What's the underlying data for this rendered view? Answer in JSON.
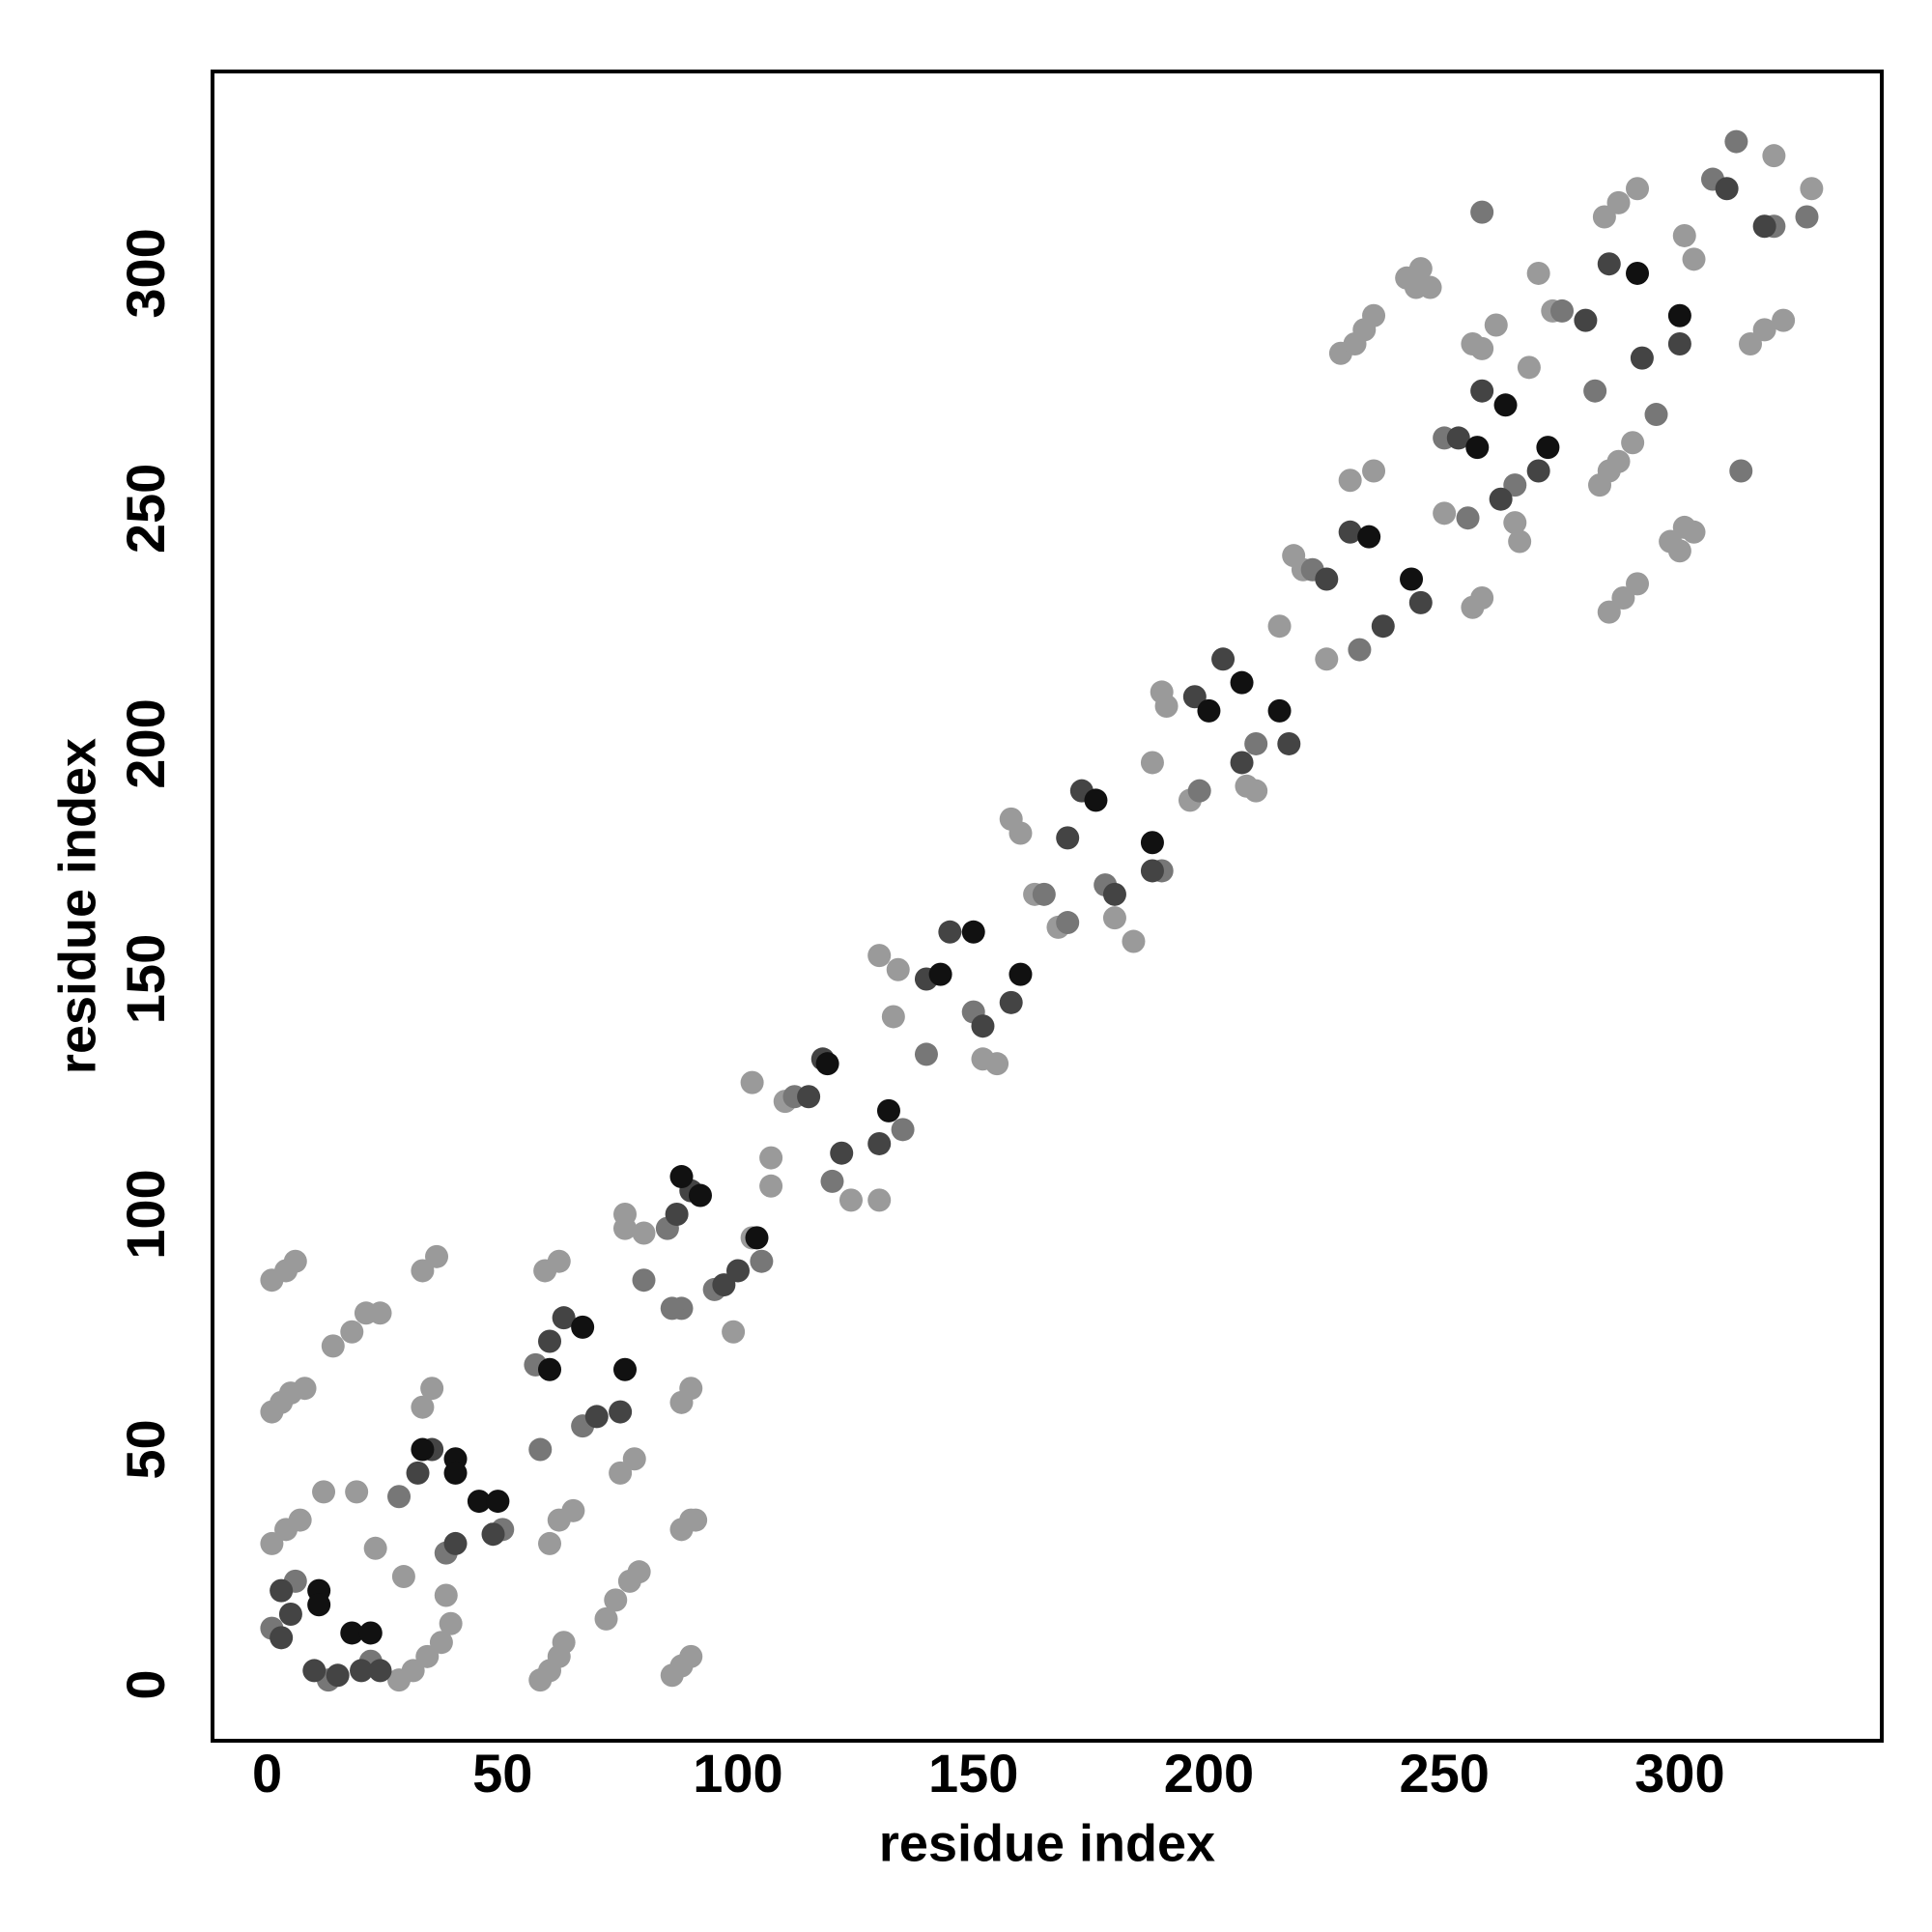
{
  "chart_data": {
    "type": "scatter",
    "xlabel": "residue index",
    "ylabel": "residue index",
    "xlim": [
      -11.6,
      342.9
    ],
    "ylim": [
      -11.9,
      342.9
    ],
    "xticks": [
      0,
      50,
      100,
      150,
      200,
      250,
      300
    ],
    "yticks": [
      0,
      50,
      100,
      150,
      200,
      250,
      300
    ],
    "series": [
      {
        "color": "#9a9a9a",
        "x": [
          1,
          3,
          5,
          8,
          1,
          4,
          6,
          14,
          18,
          21,
          24,
          1,
          4,
          7,
          12,
          19,
          23,
          29,
          28,
          31,
          34,
          37,
          33,
          35,
          33,
          36,
          38,
          39,
          58,
          60,
          62,
          63,
          60,
          62,
          65,
          59,
          62,
          72,
          74,
          77,
          79,
          86,
          88,
          90,
          88,
          90,
          88,
          90,
          91,
          76,
          76,
          80,
          78,
          75,
          99,
          103,
          110,
          103,
          107,
          107,
          124,
          130,
          133,
          130,
          134,
          152,
          155,
          163,
          160,
          158,
          168,
          180,
          184,
          191,
          188,
          196,
          190,
          208,
          210,
          215,
          220,
          218,
          225,
          228,
          231,
          233,
          235,
          242,
          245,
          244,
          247,
          235,
          230,
          256,
          258,
          250,
          256,
          261,
          258,
          270,
          273,
          285,
          288,
          291,
          283,
          285,
          287,
          290,
          298,
          300,
          301,
          303,
          301,
          303,
          315,
          318,
          322,
          320,
          328,
          284,
          287,
          291,
          268,
          266,
          265
        ],
        "values": [
          58,
          60,
          62,
          63,
          86,
          88,
          90,
          72,
          75,
          79,
          79,
          30,
          33,
          35,
          41,
          41,
          29,
          23,
          1,
          3,
          6,
          9,
          59,
          63,
          88,
          91,
          19,
          13,
          1,
          3,
          6,
          9,
          30,
          35,
          37,
          88,
          90,
          14,
          18,
          22,
          24,
          2,
          4,
          6,
          33,
          35,
          60,
          63,
          35,
          97,
          100,
          96,
          48,
          45,
          75,
          95,
          124,
          128,
          112,
          106,
          103,
          103,
          142,
          155,
          152,
          133,
          132,
          168,
          181,
          184,
          161,
          163,
          158,
          208,
          196,
          188,
          211,
          191,
          190,
          225,
          237,
          240,
          218,
          283,
          285,
          288,
          291,
          299,
          301,
          297,
          297,
          258,
          256,
          229,
          231,
          249,
          285,
          289,
          284,
          300,
          292,
          228,
          231,
          234,
          255,
          258,
          260,
          264,
          243,
          241,
          246,
          245,
          308,
          303,
          285,
          288,
          290,
          325,
          318,
          312,
          315,
          318,
          280,
          243,
          247
        ]
      },
      {
        "color": "#777777",
        "x": [
          1,
          6,
          13,
          22,
          28,
          38,
          50,
          57,
          58,
          67,
          85,
          88,
          95,
          105,
          112,
          120,
          135,
          140,
          150,
          165,
          170,
          178,
          190,
          198,
          210,
          222,
          232,
          250,
          255,
          265,
          275,
          282,
          295,
          307,
          313,
          320,
          327,
          312,
          258,
          86,
          80
        ],
        "values": [
          12,
          22,
          1,
          5,
          40,
          28,
          33,
          68,
          50,
          55,
          97,
          80,
          84,
          90,
          125,
          107,
          118,
          134,
          143,
          168,
          162,
          170,
          173,
          190,
          200,
          237,
          220,
          265,
          248,
          255,
          292,
          275,
          270,
          320,
          258,
          310,
          312,
          328,
          313,
          80,
          86
        ]
      },
      {
        "color": "#444444",
        "x": [
          3,
          5,
          3,
          10,
          15,
          20,
          24,
          32,
          35,
          40,
          48,
          60,
          63,
          70,
          75,
          87,
          90,
          97,
          100,
          115,
          118,
          122,
          130,
          140,
          145,
          152,
          158,
          170,
          173,
          180,
          188,
          197,
          203,
          207,
          217,
          225,
          230,
          237,
          245,
          253,
          258,
          262,
          270,
          280,
          285,
          292,
          300,
          310,
          318
        ],
        "values": [
          20,
          15,
          10,
          3,
          2,
          3,
          3,
          45,
          50,
          30,
          32,
          73,
          78,
          57,
          58,
          100,
          105,
          85,
          88,
          125,
          133,
          113,
          115,
          150,
          160,
          140,
          145,
          180,
          190,
          168,
          173,
          210,
          218,
          196,
          200,
          235,
          245,
          225,
          230,
          265,
          275,
          252,
          258,
          290,
          302,
          282,
          285,
          318,
          310
        ]
      },
      {
        "color": "#111111",
        "x": [
          11,
          11,
          18,
          22,
          33,
          40,
          40,
          45,
          49,
          67,
          60,
          76,
          88,
          92,
          104,
          119,
          132,
          143,
          150,
          160,
          176,
          188,
          200,
          207,
          215,
          234,
          243,
          257,
          263,
          272,
          291,
          300
        ],
        "values": [
          20,
          17,
          11,
          11,
          50,
          48,
          45,
          39,
          39,
          76,
          67,
          67,
          108,
          104,
          95,
          132,
          122,
          151,
          160,
          151,
          188,
          179,
          207,
          213,
          207,
          244,
          235,
          263,
          272,
          263,
          300,
          291
        ]
      }
    ]
  }
}
